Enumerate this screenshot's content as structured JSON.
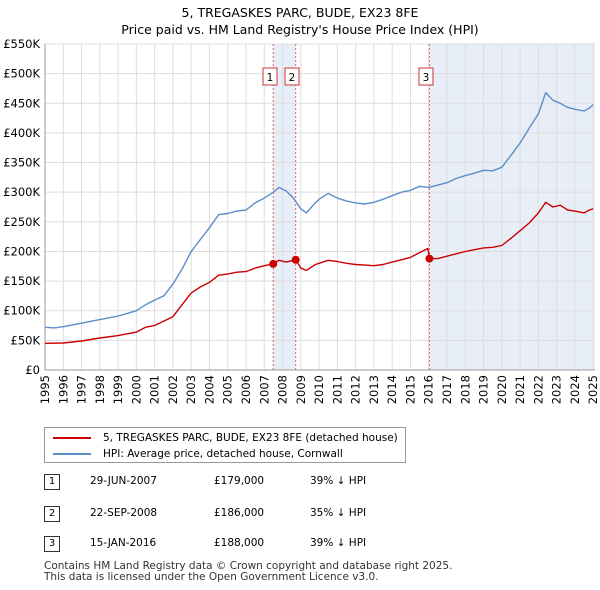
{
  "title_line1": "5, TREGASKES PARC, BUDE, EX23 8FE",
  "title_line2": "Price paid vs. HM Land Registry's House Price Index (HPI)",
  "chart_data": {
    "type": "line",
    "title": "5, TREGASKES PARC, BUDE, EX23 8FE",
    "subtitle": "Price paid vs. HM Land Registry's House Price Index (HPI)",
    "xlim": [
      1995,
      2025.1
    ],
    "ylim": [
      0,
      550000
    ],
    "x_ticks": [
      1995,
      1996,
      1997,
      1998,
      1999,
      2000,
      2001,
      2002,
      2003,
      2004,
      2005,
      2006,
      2007,
      2008,
      2009,
      2010,
      2011,
      2012,
      2013,
      2014,
      2015,
      2016,
      2017,
      2018,
      2019,
      2020,
      2021,
      2022,
      2023,
      2024,
      2025
    ],
    "y_ticks": [
      0,
      50000,
      100000,
      150000,
      200000,
      250000,
      300000,
      350000,
      400000,
      450000,
      500000,
      550000
    ],
    "y_tick_labels": [
      "£0",
      "£50K",
      "£100K",
      "£150K",
      "£200K",
      "£250K",
      "£300K",
      "£350K",
      "£400K",
      "£450K",
      "£500K",
      "£550K"
    ],
    "grid": true,
    "colors": {
      "price": "#cc0000",
      "hpi": "#5b8ec9",
      "shade": "#e8eef8",
      "vline": "#e06060"
    },
    "series": [
      {
        "name": "5, TREGASKES PARC, BUDE, EX23 8FE (detached house)",
        "color": "#cc0000",
        "points": [
          [
            1995,
            45000
          ],
          [
            1996,
            45500
          ],
          [
            1997,
            49000
          ],
          [
            1998,
            54000
          ],
          [
            1999,
            58000
          ],
          [
            2000,
            64000
          ],
          [
            2000.5,
            72000
          ],
          [
            2001,
            75000
          ],
          [
            2002,
            90000
          ],
          [
            2002.5,
            110000
          ],
          [
            2003,
            130000
          ],
          [
            2003.5,
            140000
          ],
          [
            2004,
            148000
          ],
          [
            2004.5,
            160000
          ],
          [
            2005,
            162000
          ],
          [
            2005.5,
            165000
          ],
          [
            2006,
            166000
          ],
          [
            2006.5,
            172000
          ],
          [
            2007,
            176000
          ],
          [
            2007.49,
            179000
          ],
          [
            2007.8,
            185000
          ],
          [
            2008.2,
            182000
          ],
          [
            2008.72,
            186000
          ],
          [
            2009,
            172000
          ],
          [
            2009.3,
            168000
          ],
          [
            2009.8,
            178000
          ],
          [
            2010,
            180000
          ],
          [
            2010.5,
            185000
          ],
          [
            2011,
            183000
          ],
          [
            2011.5,
            180000
          ],
          [
            2012,
            178000
          ],
          [
            2012.5,
            177000
          ],
          [
            2013,
            176000
          ],
          [
            2013.5,
            178000
          ],
          [
            2014,
            182000
          ],
          [
            2014.5,
            186000
          ],
          [
            2015,
            190000
          ],
          [
            2015.5,
            198000
          ],
          [
            2015.95,
            205000
          ],
          [
            2016.04,
            188000
          ],
          [
            2016.5,
            188000
          ],
          [
            2017,
            192000
          ],
          [
            2017.5,
            196000
          ],
          [
            2018,
            200000
          ],
          [
            2018.5,
            203000
          ],
          [
            2019,
            206000
          ],
          [
            2019.5,
            207000
          ],
          [
            2020,
            210000
          ],
          [
            2020.5,
            222000
          ],
          [
            2021,
            235000
          ],
          [
            2021.5,
            248000
          ],
          [
            2022,
            265000
          ],
          [
            2022.4,
            283000
          ],
          [
            2022.8,
            275000
          ],
          [
            2023.2,
            278000
          ],
          [
            2023.6,
            270000
          ],
          [
            2024,
            268000
          ],
          [
            2024.5,
            265000
          ],
          [
            2024.8,
            270000
          ],
          [
            2025,
            272000
          ]
        ]
      },
      {
        "name": "HPI: Average price, detached house, Cornwall",
        "color": "#5b8ec9",
        "points": [
          [
            1995,
            72000
          ],
          [
            1995.5,
            71000
          ],
          [
            1996,
            73000
          ],
          [
            1997,
            79000
          ],
          [
            1998,
            85000
          ],
          [
            1999,
            91000
          ],
          [
            2000,
            100000
          ],
          [
            2000.5,
            110000
          ],
          [
            2001,
            118000
          ],
          [
            2001.5,
            125000
          ],
          [
            2002,
            145000
          ],
          [
            2002.5,
            170000
          ],
          [
            2003,
            200000
          ],
          [
            2003.5,
            220000
          ],
          [
            2004,
            240000
          ],
          [
            2004.5,
            262000
          ],
          [
            2005,
            264000
          ],
          [
            2005.5,
            268000
          ],
          [
            2006,
            270000
          ],
          [
            2006.5,
            282000
          ],
          [
            2007,
            290000
          ],
          [
            2007.5,
            300000
          ],
          [
            2007.8,
            308000
          ],
          [
            2008.2,
            302000
          ],
          [
            2008.6,
            290000
          ],
          [
            2009,
            272000
          ],
          [
            2009.3,
            265000
          ],
          [
            2009.8,
            282000
          ],
          [
            2010,
            288000
          ],
          [
            2010.5,
            298000
          ],
          [
            2011,
            290000
          ],
          [
            2011.5,
            285000
          ],
          [
            2012,
            282000
          ],
          [
            2012.5,
            280000
          ],
          [
            2013,
            283000
          ],
          [
            2013.5,
            288000
          ],
          [
            2014,
            294000
          ],
          [
            2014.5,
            300000
          ],
          [
            2015,
            303000
          ],
          [
            2015.5,
            310000
          ],
          [
            2016,
            308000
          ],
          [
            2016.5,
            312000
          ],
          [
            2017,
            316000
          ],
          [
            2017.5,
            323000
          ],
          [
            2018,
            328000
          ],
          [
            2018.5,
            332000
          ],
          [
            2019,
            337000
          ],
          [
            2019.5,
            336000
          ],
          [
            2020,
            342000
          ],
          [
            2020.5,
            362000
          ],
          [
            2021,
            383000
          ],
          [
            2021.5,
            408000
          ],
          [
            2022,
            432000
          ],
          [
            2022.4,
            468000
          ],
          [
            2022.8,
            455000
          ],
          [
            2023.2,
            450000
          ],
          [
            2023.6,
            443000
          ],
          [
            2024,
            440000
          ],
          [
            2024.5,
            437000
          ],
          [
            2024.8,
            442000
          ],
          [
            2025,
            448000
          ]
        ]
      }
    ],
    "transactions": [
      {
        "id": "1",
        "x": 2007.49,
        "value": 179000,
        "date": "29-JUN-2007",
        "price": "£179,000",
        "hpi": "39% ↓ HPI"
      },
      {
        "id": "2",
        "x": 2008.72,
        "value": 186000,
        "date": "22-SEP-2008",
        "price": "£186,000",
        "hpi": "35% ↓ HPI"
      },
      {
        "id": "3",
        "x": 2016.04,
        "value": 188000,
        "date": "15-JAN-2016",
        "price": "£188,000",
        "hpi": "39% ↓ HPI"
      }
    ],
    "shaded_ranges": [
      [
        2007.49,
        2008.72
      ],
      [
        2016.04,
        2025.1
      ]
    ],
    "legend_position": "below"
  },
  "legend": {
    "price_label": "5, TREGASKES PARC, BUDE, EX23 8FE (detached house)",
    "hpi_label": "HPI: Average price, detached house, Cornwall"
  },
  "footer": {
    "line1": "Contains HM Land Registry data © Crown copyright and database right 2025.",
    "line2": "This data is licensed under the Open Government Licence v3.0."
  }
}
